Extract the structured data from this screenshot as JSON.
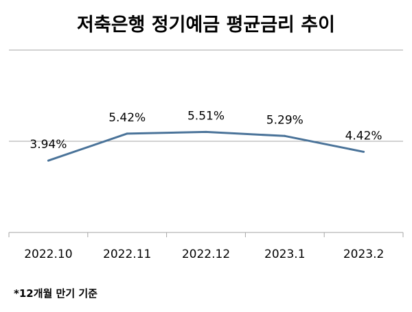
{
  "chart_data": {
    "type": "line",
    "title": "저축은행 정기예금 평균금리 추이",
    "categories": [
      "2022.10",
      "2022.11",
      "2022.12",
      "2023.1",
      "2023.2"
    ],
    "series": [
      {
        "values": [
          3.94,
          5.42,
          5.51,
          5.29,
          4.42
        ],
        "labels": [
          "3.94%",
          "5.42%",
          "5.51%",
          "5.29%",
          "4.42%"
        ],
        "color": "#4a7399"
      }
    ],
    "ylim": [
      0,
      10
    ],
    "gridlines": [
      10,
      5
    ],
    "grid": true,
    "legend": "none",
    "axis_color": "#a6a6a6",
    "footnote": "*12개월 만기 기준"
  }
}
